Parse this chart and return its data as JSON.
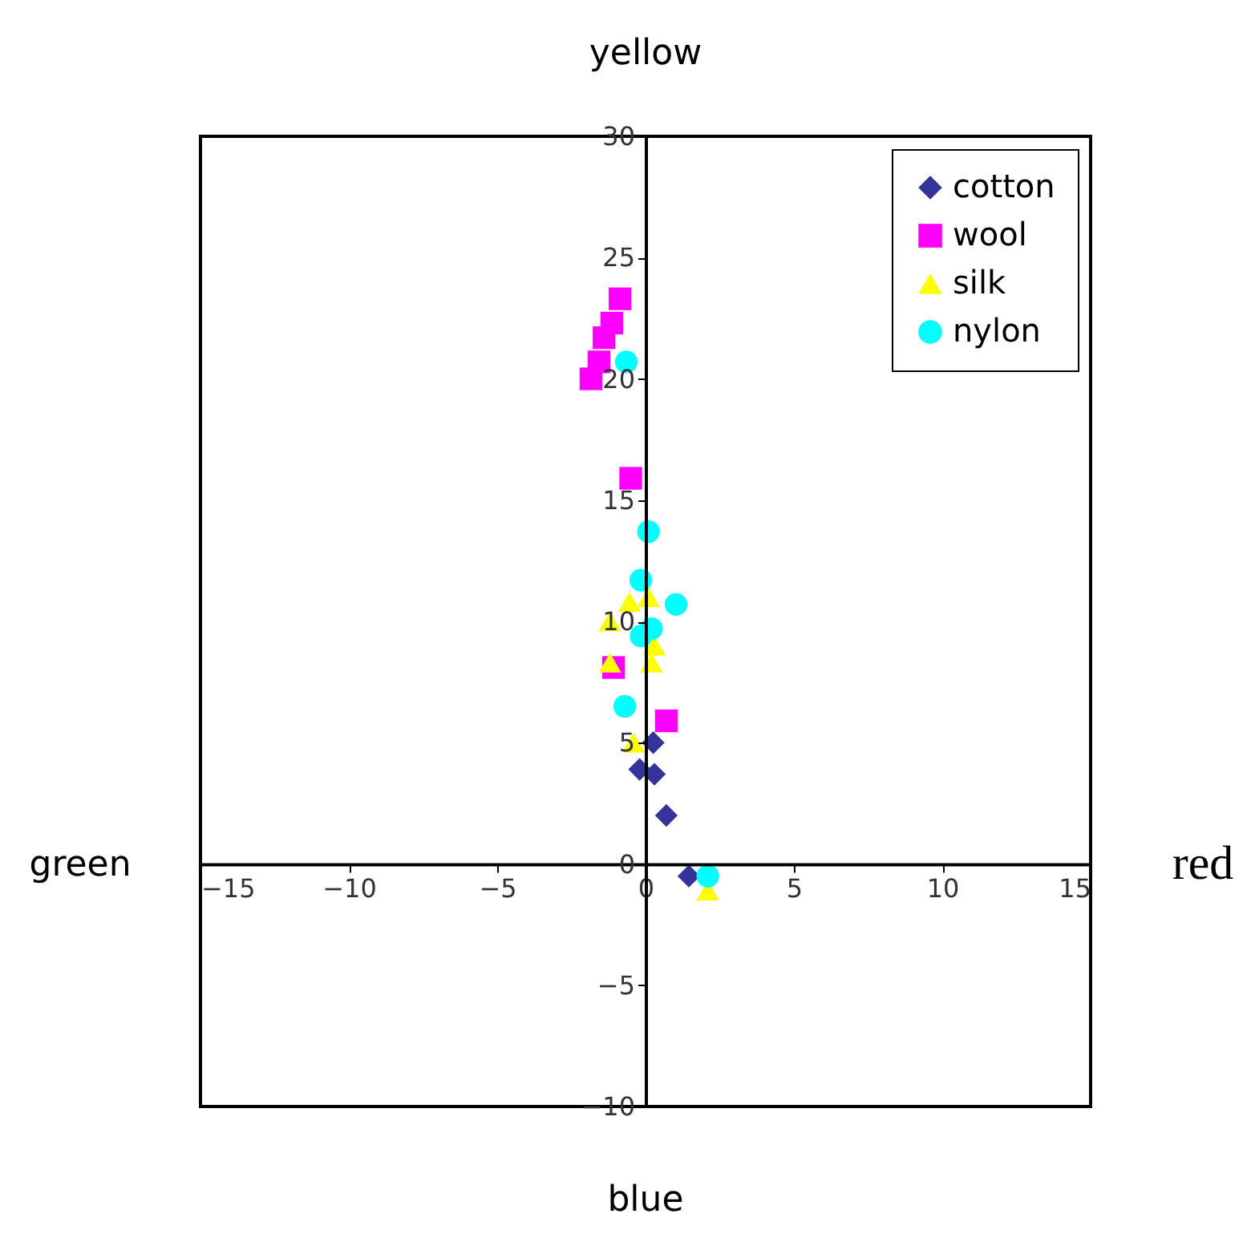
{
  "chart_data": {
    "type": "scatter",
    "annotations": [
      "yellow",
      "green",
      "red",
      "blue"
    ],
    "xlim": [
      -15,
      15
    ],
    "xticks": [
      -15,
      -10,
      -5,
      0,
      5,
      10,
      15
    ],
    "ylim": [
      -10,
      30
    ],
    "yticks": [
      -10,
      -5,
      0,
      5,
      10,
      15,
      20,
      25,
      30
    ],
    "grid": false,
    "legend": "top right",
    "series": [
      {
        "name": "cotton",
        "color": "#333399",
        "marker": "diamond",
        "x": [
          0.26,
          -0.2,
          0.3,
          0.7,
          1.46
        ],
        "values": [
          5.0,
          3.9,
          3.7,
          2.0,
          -0.5
        ]
      },
      {
        "name": "wool",
        "color": "#ff00ff",
        "marker": "square",
        "x": [
          -0.86,
          -1.14,
          -1.4,
          -1.57,
          -1.84,
          -0.5,
          -1.08,
          0.7
        ],
        "values": [
          23.3,
          22.3,
          21.7,
          20.7,
          20.0,
          15.9,
          8.1,
          5.9
        ]
      },
      {
        "name": "silk",
        "color": "#ffff00",
        "marker": "triangle",
        "x": [
          -0.54,
          0.1,
          -1.2,
          0.3,
          -1.2,
          0.2,
          -0.4,
          2.1
        ],
        "values": [
          10.8,
          11.0,
          10.0,
          9.0,
          8.3,
          8.3,
          5.0,
          -1.1
        ]
      },
      {
        "name": "nylon",
        "color": "#00ffff",
        "marker": "circle",
        "x": [
          -0.65,
          0.1,
          -0.16,
          1.03,
          0.2,
          -0.15,
          -0.7,
          2.1
        ],
        "values": [
          20.7,
          13.7,
          11.7,
          10.7,
          9.7,
          9.4,
          6.5,
          -0.5
        ]
      }
    ]
  }
}
